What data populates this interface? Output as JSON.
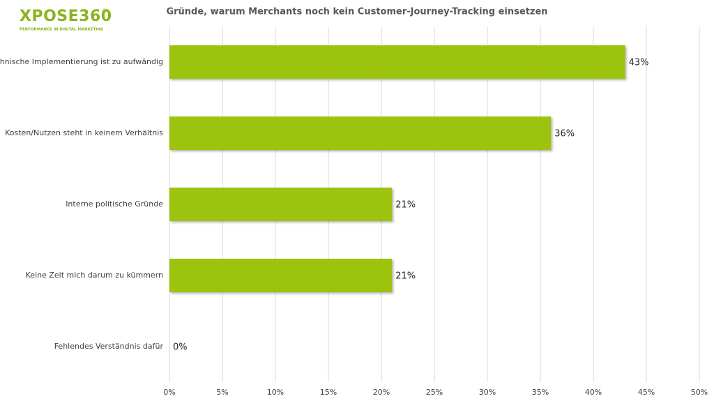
{
  "logo": {
    "name": "XPOSE360",
    "mark": "®",
    "tagline": "PERFORMANCE IN DIGITAL MARKETING"
  },
  "chart_data": {
    "type": "hbar",
    "title": "Gründe, warum Merchants noch kein Customer-Journey-Tracking einsetzen",
    "categories": [
      "Technische Implementierung ist zu aufwändig",
      "Kosten/Nutzen steht in keinem Verhältnis",
      "Interne politische Gründe",
      "Keine Zeit mich darum zu kümmern",
      "Fehlendes Verständnis dafür"
    ],
    "values": [
      43,
      36,
      21,
      21,
      0
    ],
    "value_labels": [
      "43%",
      "36%",
      "21%",
      "21%",
      "0%"
    ],
    "color": "#9cc309",
    "xlim": [
      0,
      50
    ],
    "xticks": [
      {
        "value": 0,
        "label": "0%"
      },
      {
        "value": 5,
        "label": "5%"
      },
      {
        "value": 10,
        "label": "10%"
      },
      {
        "value": 15,
        "label": "15%"
      },
      {
        "value": 20,
        "label": "20%"
      },
      {
        "value": 25,
        "label": "25%"
      },
      {
        "value": 30,
        "label": "30%"
      },
      {
        "value": 35,
        "label": "35%"
      },
      {
        "value": 40,
        "label": "40%"
      },
      {
        "value": 45,
        "label": "45%"
      },
      {
        "value": 50,
        "label": "50%"
      }
    ],
    "grid": true
  }
}
